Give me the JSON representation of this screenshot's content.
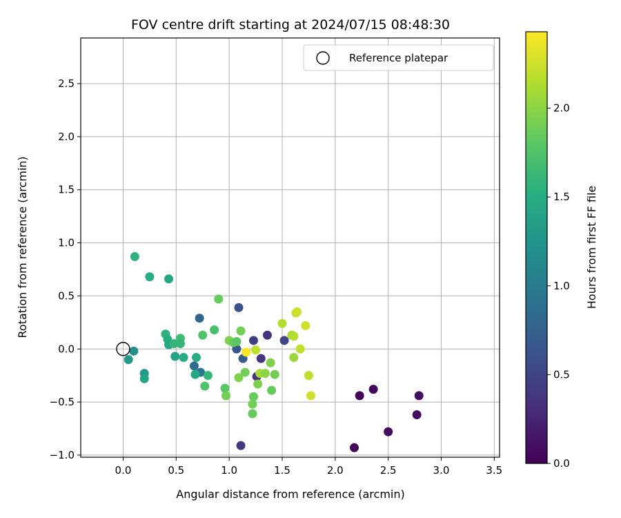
{
  "chart_data": {
    "type": "scatter",
    "title": "FOV centre drift starting at 2024/07/15 08:48:30",
    "xlabel": "Angular distance from reference (arcmin)",
    "ylabel": "Rotation from reference (arcmin)",
    "xlim": [
      -0.4,
      3.55
    ],
    "ylim": [
      -1.02,
      2.93
    ],
    "xticks": [
      0.0,
      0.5,
      1.0,
      1.5,
      2.0,
      2.5,
      3.0,
      3.5
    ],
    "xtick_labels": [
      "0.0",
      "0.5",
      "1.0",
      "1.5",
      "2.0",
      "2.5",
      "3.0",
      "3.5"
    ],
    "yticks": [
      -1.0,
      -0.5,
      0.0,
      0.5,
      1.0,
      1.5,
      2.0,
      2.5
    ],
    "ytick_labels": [
      "−1.0",
      "−0.5",
      "0.0",
      "0.5",
      "1.0",
      "1.5",
      "2.0",
      "2.5"
    ],
    "grid": true,
    "legend_position": "top-right",
    "colorbar": {
      "label": "Hours from first FF file",
      "colormap": "viridis",
      "range": [
        0.0,
        2.43
      ],
      "ticks": [
        0.0,
        0.5,
        1.0,
        1.5,
        2.0
      ],
      "tick_labels": [
        "0.0",
        "0.5",
        "1.0",
        "1.5",
        "2.0"
      ]
    },
    "reference_point": {
      "name": "Reference platepar",
      "x": 0.0,
      "y": 0.0
    },
    "points": [
      {
        "x": 2.18,
        "y": -0.93,
        "c": 0.0
      },
      {
        "x": 2.23,
        "y": -0.44,
        "c": 0.03
      },
      {
        "x": 2.36,
        "y": -0.38,
        "c": 0.05
      },
      {
        "x": 2.5,
        "y": -0.78,
        "c": 0.07
      },
      {
        "x": 2.77,
        "y": -0.62,
        "c": 0.09
      },
      {
        "x": 2.79,
        "y": -0.44,
        "c": 0.1
      },
      {
        "x": 1.11,
        "y": -0.91,
        "c": 0.4
      },
      {
        "x": 1.26,
        "y": -0.26,
        "c": 0.35
      },
      {
        "x": 1.3,
        "y": -0.09,
        "c": 0.38
      },
      {
        "x": 1.36,
        "y": 0.13,
        "c": 0.35
      },
      {
        "x": 1.23,
        "y": 0.08,
        "c": 0.45
      },
      {
        "x": 1.09,
        "y": 0.39,
        "c": 0.6
      },
      {
        "x": 1.52,
        "y": 0.08,
        "c": 0.5
      },
      {
        "x": 1.13,
        "y": -0.09,
        "c": 0.7
      },
      {
        "x": 1.07,
        "y": 0.0,
        "c": 0.65
      },
      {
        "x": 0.72,
        "y": 0.29,
        "c": 0.8
      },
      {
        "x": 0.67,
        "y": -0.16,
        "c": 0.85
      },
      {
        "x": 0.73,
        "y": -0.22,
        "c": 0.95
      },
      {
        "x": 0.1,
        "y": -0.02,
        "c": 1.2
      },
      {
        "x": 0.05,
        "y": -0.1,
        "c": 1.3
      },
      {
        "x": 0.2,
        "y": -0.23,
        "c": 1.3
      },
      {
        "x": 0.2,
        "y": -0.28,
        "c": 1.4
      },
      {
        "x": 0.11,
        "y": 0.87,
        "c": 1.55
      },
      {
        "x": 0.25,
        "y": 0.68,
        "c": 1.5
      },
      {
        "x": 0.43,
        "y": 0.66,
        "c": 1.45
      },
      {
        "x": 0.4,
        "y": 0.14,
        "c": 1.55
      },
      {
        "x": 0.42,
        "y": 0.09,
        "c": 1.5
      },
      {
        "x": 0.43,
        "y": 0.04,
        "c": 1.45
      },
      {
        "x": 0.48,
        "y": 0.05,
        "c": 1.6
      },
      {
        "x": 0.54,
        "y": 0.1,
        "c": 1.65
      },
      {
        "x": 0.54,
        "y": 0.05,
        "c": 1.6
      },
      {
        "x": 0.49,
        "y": -0.07,
        "c": 1.4
      },
      {
        "x": 0.57,
        "y": -0.08,
        "c": 1.5
      },
      {
        "x": 0.69,
        "y": -0.08,
        "c": 1.5
      },
      {
        "x": 0.68,
        "y": -0.24,
        "c": 1.45
      },
      {
        "x": 0.75,
        "y": 0.13,
        "c": 1.75
      },
      {
        "x": 0.8,
        "y": -0.25,
        "c": 1.6
      },
      {
        "x": 0.77,
        "y": -0.35,
        "c": 1.75
      },
      {
        "x": 0.86,
        "y": 0.18,
        "c": 1.7
      },
      {
        "x": 0.9,
        "y": 0.47,
        "c": 1.85
      },
      {
        "x": 0.96,
        "y": -0.37,
        "c": 1.8
      },
      {
        "x": 0.97,
        "y": -0.44,
        "c": 1.9
      },
      {
        "x": 1.0,
        "y": 0.08,
        "c": 1.95
      },
      {
        "x": 1.04,
        "y": 0.06,
        "c": 1.85
      },
      {
        "x": 1.07,
        "y": 0.07,
        "c": 1.8
      },
      {
        "x": 1.11,
        "y": 0.17,
        "c": 1.9
      },
      {
        "x": 1.09,
        "y": -0.27,
        "c": 1.95
      },
      {
        "x": 1.15,
        "y": -0.22,
        "c": 1.9
      },
      {
        "x": 1.23,
        "y": -0.45,
        "c": 1.85
      },
      {
        "x": 1.22,
        "y": -0.52,
        "c": 1.9
      },
      {
        "x": 1.22,
        "y": -0.61,
        "c": 1.85
      },
      {
        "x": 1.25,
        "y": -0.01,
        "c": 2.2
      },
      {
        "x": 1.27,
        "y": -0.33,
        "c": 1.95
      },
      {
        "x": 1.29,
        "y": -0.23,
        "c": 2.1
      },
      {
        "x": 1.34,
        "y": -0.23,
        "c": 2.0
      },
      {
        "x": 1.39,
        "y": -0.13,
        "c": 1.95
      },
      {
        "x": 1.4,
        "y": -0.39,
        "c": 1.85
      },
      {
        "x": 1.43,
        "y": -0.24,
        "c": 1.9
      },
      {
        "x": 1.5,
        "y": 0.24,
        "c": 2.15
      },
      {
        "x": 1.59,
        "y": 0.13,
        "c": 2.1
      },
      {
        "x": 1.61,
        "y": 0.12,
        "c": 2.15
      },
      {
        "x": 1.63,
        "y": 0.34,
        "c": 2.2
      },
      {
        "x": 1.64,
        "y": 0.35,
        "c": 2.25
      },
      {
        "x": 1.61,
        "y": -0.08,
        "c": 2.05
      },
      {
        "x": 1.67,
        "y": 0.0,
        "c": 2.2
      },
      {
        "x": 1.72,
        "y": 0.22,
        "c": 2.25
      },
      {
        "x": 1.75,
        "y": -0.25,
        "c": 2.2
      },
      {
        "x": 1.77,
        "y": -0.44,
        "c": 2.25
      },
      {
        "x": 1.16,
        "y": -0.03,
        "c": 2.43
      }
    ]
  }
}
